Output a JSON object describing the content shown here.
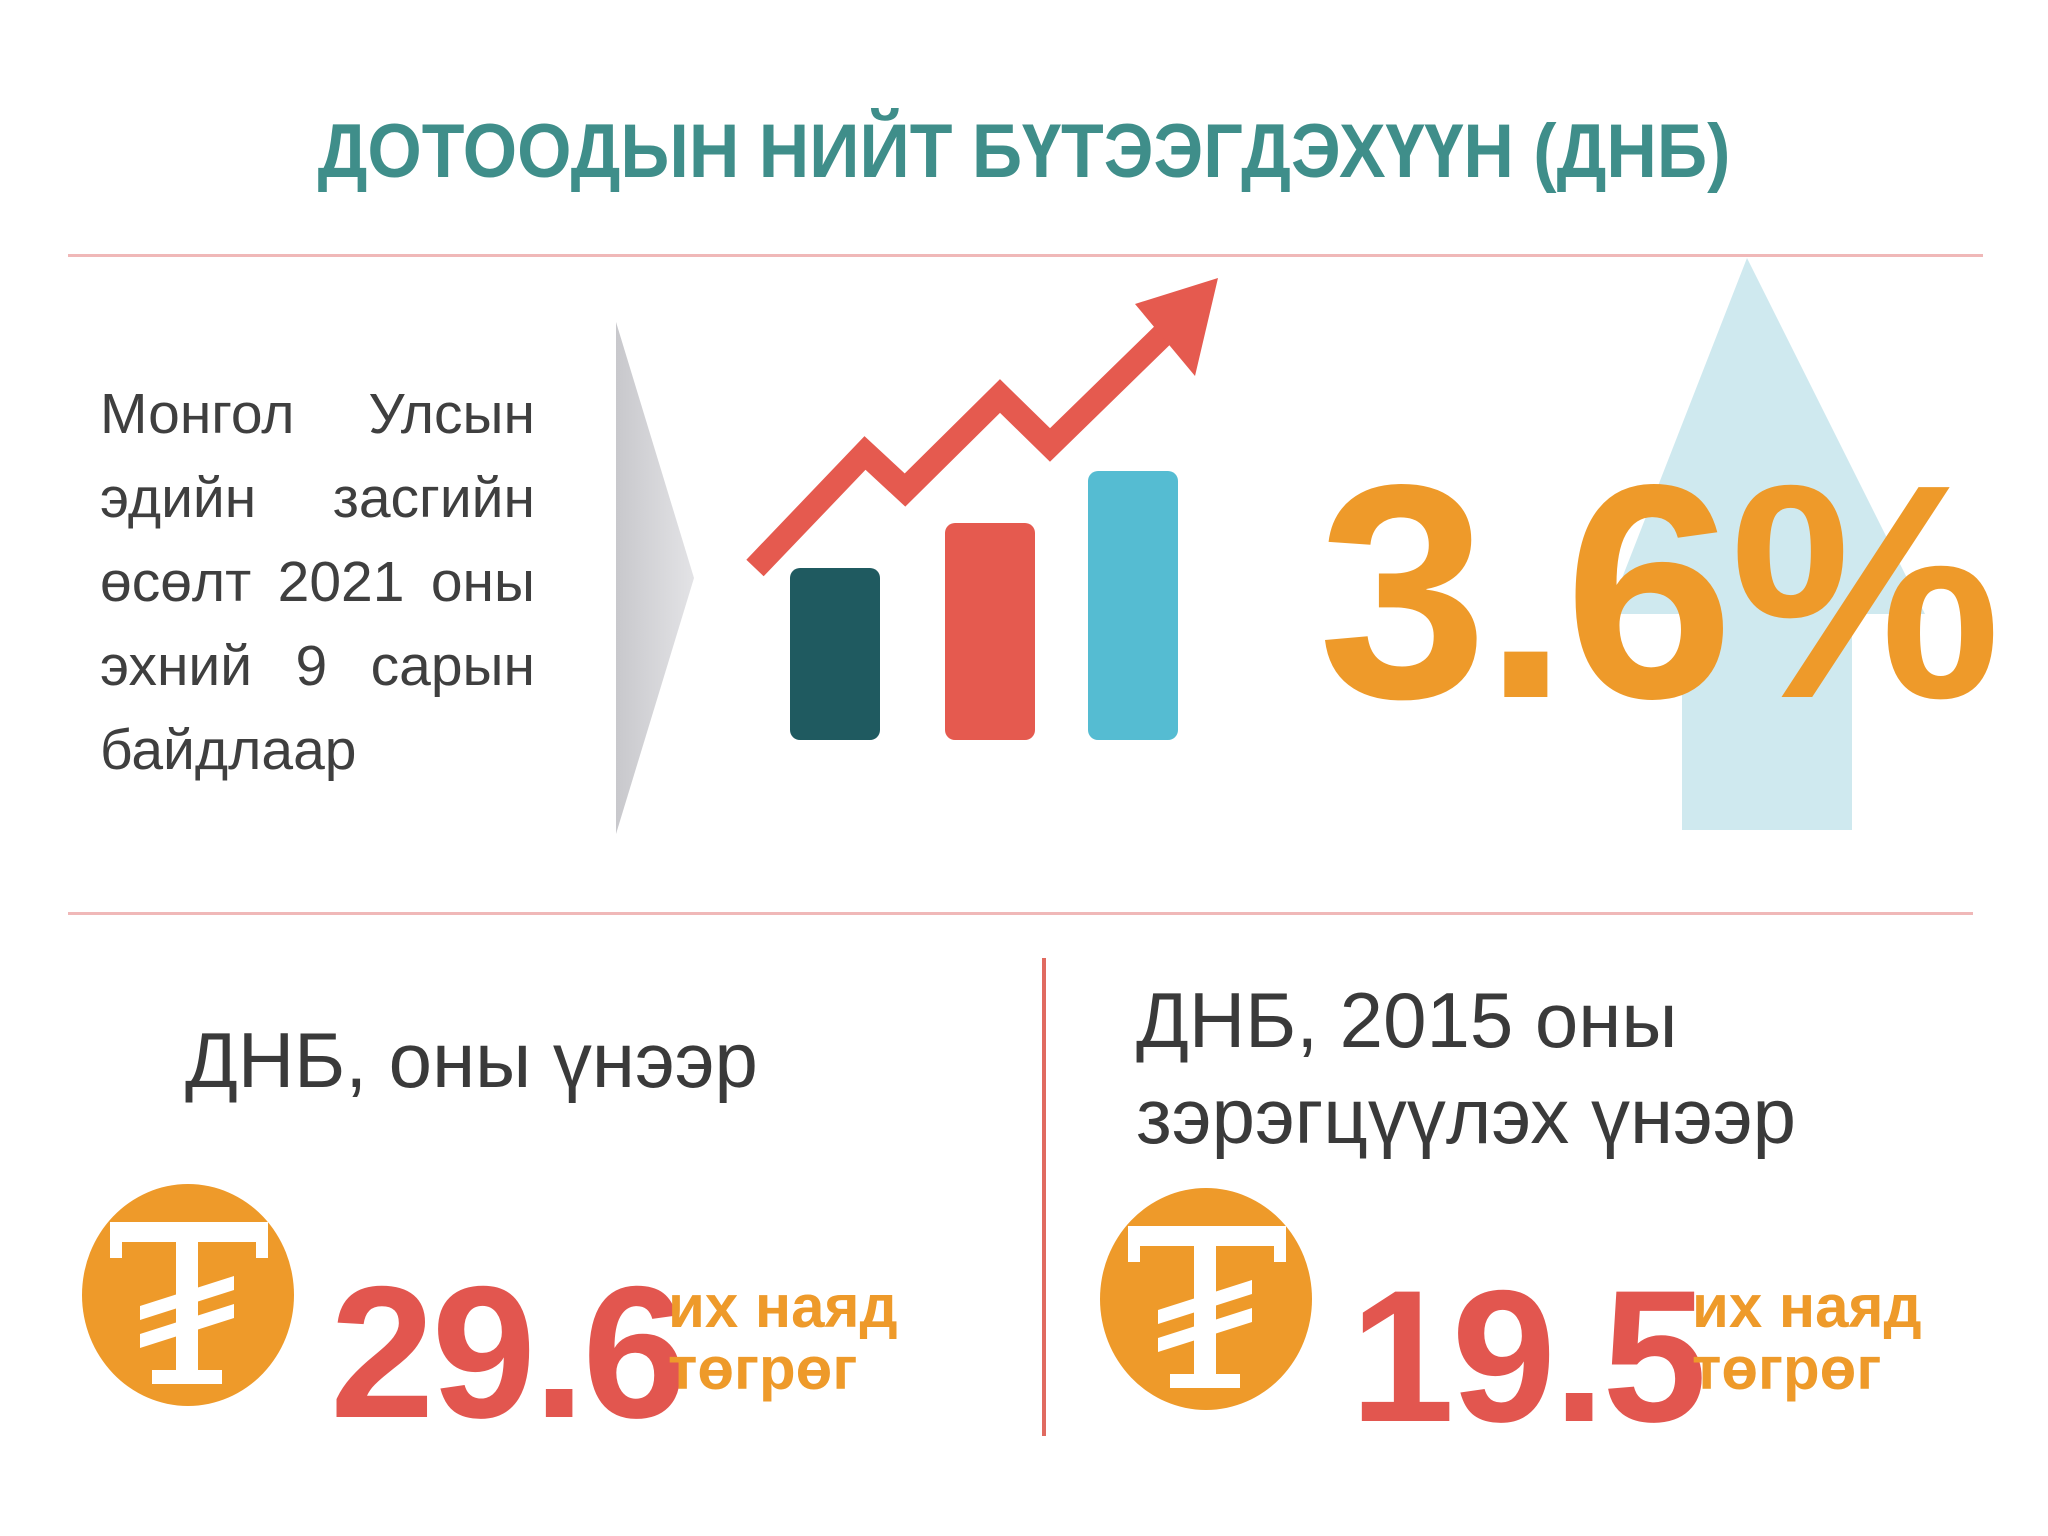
{
  "header": {
    "title": "ДОТООДЫН НИЙТ БҮТЭЭГДЭХҮҮН (ДНБ)"
  },
  "intro": {
    "text": "Монгол Улсын эдийн засгийн өсөлт 2021 оны эхний 9 сарын байдлаар"
  },
  "growth": {
    "value": "3.6%"
  },
  "gdp_current": {
    "label": "ДНБ, оны үнээр",
    "amount": "29.6",
    "unit_line1": "их наяд",
    "unit_line2": "төгрөг"
  },
  "gdp_constant": {
    "label_line1": "ДНБ, 2015 оны",
    "label_line2": "зэрэгцүүлэх үнээр",
    "amount": "19.5",
    "unit_line1": "их наяд",
    "unit_line2": "төгрөг"
  },
  "colors": {
    "title": "#3f8e8a",
    "accent_orange": "#ee9a2a",
    "accent_red": "#e2564f",
    "bar_dark": "#1f5a60",
    "bar_red": "#e55a4f",
    "bar_blue": "#55bcd2",
    "arrow_light_blue": "#cfe9ef",
    "rule_pink": "#f0b8b8"
  },
  "icons": [
    "chevron-right-icon",
    "growth-chart-icon",
    "up-arrow-icon",
    "tugrik-coin-icon"
  ]
}
